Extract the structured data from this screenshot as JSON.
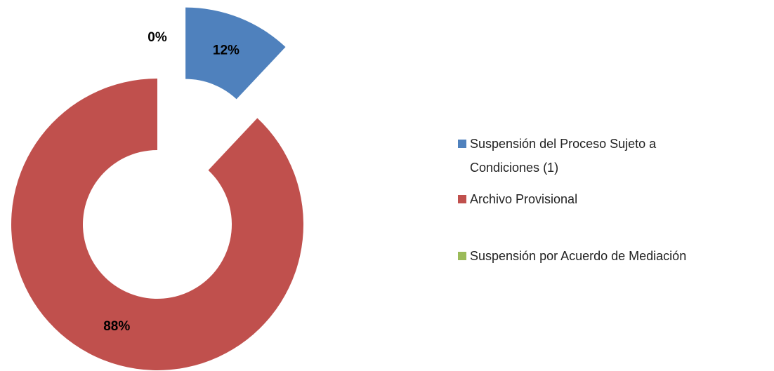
{
  "chart_data": {
    "type": "donut",
    "categories": [
      "Suspensión del Proceso Sujeto a Condiciones (1)",
      "Archivo Provisional",
      "Suspensión por Acuerdo de Mediación"
    ],
    "values": [
      12,
      88,
      0
    ],
    "value_labels": [
      "12%",
      "88%",
      "0%"
    ],
    "colors": [
      "#4f81bd",
      "#c0504d",
      "#9bbb59"
    ],
    "legend": "right"
  }
}
